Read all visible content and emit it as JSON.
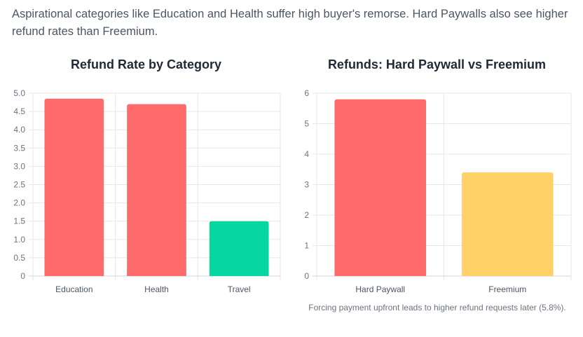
{
  "intro": "Aspirational categories like Education and Health suffer high buyer's remorse. Hard Paywalls also see higher refund rates than Freemium.",
  "note": "Forcing payment upfront leads to higher refund requests later (5.8%).",
  "chart_data": [
    {
      "type": "bar",
      "title": "Refund Rate by Category",
      "xlabel": "",
      "ylabel": "",
      "categories": [
        "Education",
        "Health",
        "Travel"
      ],
      "values": [
        4.85,
        4.7,
        1.5
      ],
      "colors": [
        "#ff6b6b",
        "#ff6b6b",
        "#06d6a0"
      ],
      "ylim": [
        0,
        5
      ],
      "yticks": [
        "0",
        "0.5",
        "1.0",
        "1.5",
        "2.0",
        "2.5",
        "3.0",
        "3.5",
        "4.0",
        "4.5",
        "5.0"
      ],
      "grid": true,
      "legend": "none"
    },
    {
      "type": "bar",
      "title": "Refunds: Hard Paywall vs Freemium",
      "xlabel": "",
      "ylabel": "",
      "categories": [
        "Hard Paywall",
        "Freemium"
      ],
      "values": [
        5.8,
        3.4
      ],
      "colors": [
        "#ff6b6b",
        "#ffd166"
      ],
      "ylim": [
        0,
        6
      ],
      "yticks": [
        "0",
        "1",
        "2",
        "3",
        "4",
        "5",
        "6"
      ],
      "grid": true,
      "legend": "none"
    }
  ]
}
